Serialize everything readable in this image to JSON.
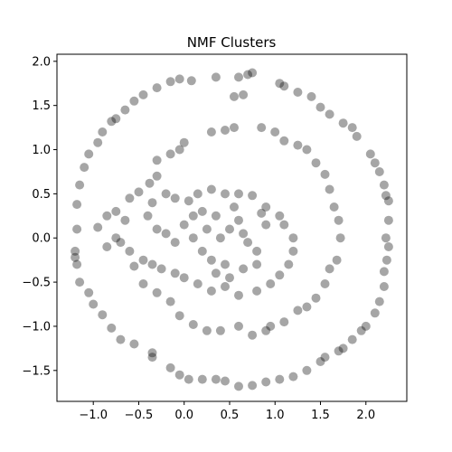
{
  "chart_data": {
    "type": "scatter",
    "title": "NMF Clusters",
    "xlabel": "",
    "ylabel": "",
    "xlim": [
      -1.4,
      2.45
    ],
    "ylim": [
      -1.85,
      2.08
    ],
    "x_ticks": [
      -1.0,
      -0.5,
      0.0,
      0.5,
      1.0,
      1.5,
      2.0
    ],
    "x_tick_labels": [
      "−1.0",
      "−0.5",
      "0.0",
      "0.5",
      "1.0",
      "1.5",
      "2.0"
    ],
    "y_ticks": [
      -1.5,
      -1.0,
      -0.5,
      0.0,
      0.5,
      1.0,
      1.5,
      2.0
    ],
    "y_tick_labels": [
      "−1.5",
      "−1.0",
      "−0.5",
      "0.0",
      "0.5",
      "1.0",
      "1.5",
      "2.0"
    ],
    "grid": false,
    "marker_color": "#000000",
    "marker_opacity": 0.35,
    "points": [
      [
        -1.18,
        0.38
      ],
      [
        -1.15,
        0.6
      ],
      [
        -1.1,
        0.8
      ],
      [
        -1.05,
        0.95
      ],
      [
        -0.95,
        1.08
      ],
      [
        -0.9,
        1.2
      ],
      [
        -0.8,
        1.32
      ],
      [
        -0.75,
        1.35
      ],
      [
        -0.65,
        1.45
      ],
      [
        -0.55,
        1.55
      ],
      [
        -0.45,
        1.62
      ],
      [
        -0.3,
        1.7
      ],
      [
        -0.15,
        1.77
      ],
      [
        -0.05,
        1.8
      ],
      [
        0.08,
        1.78
      ],
      [
        0.35,
        1.82
      ],
      [
        0.6,
        1.82
      ],
      [
        0.7,
        1.85
      ],
      [
        0.75,
        1.87
      ],
      [
        0.65,
        1.62
      ],
      [
        0.55,
        1.6
      ],
      [
        1.05,
        1.75
      ],
      [
        1.1,
        1.72
      ],
      [
        1.25,
        1.65
      ],
      [
        1.4,
        1.6
      ],
      [
        1.5,
        1.48
      ],
      [
        1.6,
        1.4
      ],
      [
        1.75,
        1.3
      ],
      [
        1.85,
        1.25
      ],
      [
        1.9,
        1.15
      ],
      [
        2.05,
        0.95
      ],
      [
        2.1,
        0.85
      ],
      [
        2.15,
        0.75
      ],
      [
        2.2,
        0.6
      ],
      [
        2.22,
        0.48
      ],
      [
        2.25,
        0.42
      ],
      [
        2.25,
        0.2
      ],
      [
        2.22,
        0.0
      ],
      [
        2.25,
        -0.1
      ],
      [
        2.23,
        -0.25
      ],
      [
        2.2,
        -0.38
      ],
      [
        2.2,
        -0.55
      ],
      [
        2.15,
        -0.72
      ],
      [
        2.1,
        -0.85
      ],
      [
        2.0,
        -1.0
      ],
      [
        1.95,
        -1.05
      ],
      [
        1.85,
        -1.15
      ],
      [
        1.75,
        -1.25
      ],
      [
        1.7,
        -1.28
      ],
      [
        1.55,
        -1.35
      ],
      [
        1.5,
        -1.4
      ],
      [
        1.35,
        -1.5
      ],
      [
        1.2,
        -1.57
      ],
      [
        1.05,
        -1.6
      ],
      [
        0.9,
        -1.63
      ],
      [
        0.75,
        -1.67
      ],
      [
        0.6,
        -1.68
      ],
      [
        0.45,
        -1.62
      ],
      [
        0.35,
        -1.6
      ],
      [
        0.2,
        -1.6
      ],
      [
        0.05,
        -1.6
      ],
      [
        -0.05,
        -1.55
      ],
      [
        -0.15,
        -1.47
      ],
      [
        -0.35,
        -1.35
      ],
      [
        -0.35,
        -1.3
      ],
      [
        -0.55,
        -1.2
      ],
      [
        -0.7,
        -1.15
      ],
      [
        -0.8,
        -1.02
      ],
      [
        -0.9,
        -0.87
      ],
      [
        -1.0,
        -0.75
      ],
      [
        -1.05,
        -0.62
      ],
      [
        -1.15,
        -0.5
      ],
      [
        -1.18,
        -0.3
      ],
      [
        -1.2,
        -0.22
      ],
      [
        -1.2,
        -0.15
      ],
      [
        -1.18,
        0.1
      ],
      [
        -0.95,
        0.12
      ],
      [
        -0.85,
        0.25
      ],
      [
        -0.75,
        0.3
      ],
      [
        -0.6,
        0.45
      ],
      [
        -0.5,
        0.52
      ],
      [
        -0.38,
        0.62
      ],
      [
        -0.3,
        0.7
      ],
      [
        -0.3,
        0.88
      ],
      [
        -0.15,
        0.95
      ],
      [
        -0.05,
        1.0
      ],
      [
        0.0,
        1.08
      ],
      [
        0.3,
        1.2
      ],
      [
        0.45,
        1.22
      ],
      [
        0.55,
        1.25
      ],
      [
        0.85,
        1.25
      ],
      [
        1.0,
        1.2
      ],
      [
        1.1,
        1.1
      ],
      [
        1.25,
        1.05
      ],
      [
        1.35,
        1.0
      ],
      [
        1.45,
        0.85
      ],
      [
        1.55,
        0.72
      ],
      [
        1.6,
        0.55
      ],
      [
        1.65,
        0.35
      ],
      [
        1.7,
        0.2
      ],
      [
        1.72,
        0.0
      ],
      [
        1.68,
        -0.25
      ],
      [
        1.6,
        -0.35
      ],
      [
        1.55,
        -0.52
      ],
      [
        1.45,
        -0.68
      ],
      [
        1.35,
        -0.78
      ],
      [
        1.25,
        -0.82
      ],
      [
        1.1,
        -0.95
      ],
      [
        0.95,
        -1.0
      ],
      [
        0.9,
        -1.05
      ],
      [
        0.75,
        -1.1
      ],
      [
        0.6,
        -1.0
      ],
      [
        0.4,
        -1.05
      ],
      [
        0.25,
        -1.05
      ],
      [
        0.1,
        -0.98
      ],
      [
        -0.05,
        -0.88
      ],
      [
        -0.15,
        -0.72
      ],
      [
        -0.3,
        -0.62
      ],
      [
        -0.45,
        -0.52
      ],
      [
        -0.55,
        -0.32
      ],
      [
        -0.6,
        -0.15
      ],
      [
        -0.7,
        -0.05
      ],
      [
        -0.75,
        0.0
      ],
      [
        -0.85,
        -0.1
      ],
      [
        -0.65,
        0.2
      ],
      [
        -0.4,
        0.25
      ],
      [
        -0.35,
        0.4
      ],
      [
        -0.2,
        0.5
      ],
      [
        -0.1,
        0.45
      ],
      [
        0.05,
        0.42
      ],
      [
        0.15,
        0.5
      ],
      [
        0.3,
        0.55
      ],
      [
        0.45,
        0.5
      ],
      [
        0.6,
        0.5
      ],
      [
        0.75,
        0.48
      ],
      [
        0.9,
        0.35
      ],
      [
        1.05,
        0.25
      ],
      [
        1.1,
        0.15
      ],
      [
        1.2,
        0.0
      ],
      [
        1.2,
        -0.15
      ],
      [
        1.15,
        -0.3
      ],
      [
        1.05,
        -0.42
      ],
      [
        0.95,
        -0.52
      ],
      [
        0.8,
        -0.6
      ],
      [
        0.6,
        -0.65
      ],
      [
        0.45,
        -0.55
      ],
      [
        0.3,
        -0.6
      ],
      [
        0.15,
        -0.52
      ],
      [
        0.0,
        -0.45
      ],
      [
        -0.1,
        -0.4
      ],
      [
        -0.25,
        -0.35
      ],
      [
        -0.35,
        -0.3
      ],
      [
        -0.45,
        -0.25
      ],
      [
        -0.3,
        0.1
      ],
      [
        -0.2,
        0.05
      ],
      [
        -0.1,
        -0.05
      ],
      [
        0.0,
        0.15
      ],
      [
        0.1,
        0.25
      ],
      [
        0.2,
        0.3
      ],
      [
        0.35,
        0.25
      ],
      [
        0.5,
        0.1
      ],
      [
        0.6,
        0.2
      ],
      [
        0.65,
        0.05
      ],
      [
        0.7,
        -0.05
      ],
      [
        0.8,
        -0.15
      ],
      [
        0.8,
        -0.3
      ],
      [
        0.65,
        -0.35
      ],
      [
        0.45,
        -0.3
      ],
      [
        0.3,
        -0.25
      ],
      [
        0.2,
        -0.15
      ],
      [
        0.1,
        0.0
      ],
      [
        0.25,
        0.1
      ],
      [
        0.4,
        0.0
      ],
      [
        0.9,
        0.15
      ],
      [
        0.55,
        0.35
      ],
      [
        0.85,
        0.28
      ],
      [
        0.35,
        -0.4
      ],
      [
        0.5,
        -0.45
      ]
    ]
  }
}
